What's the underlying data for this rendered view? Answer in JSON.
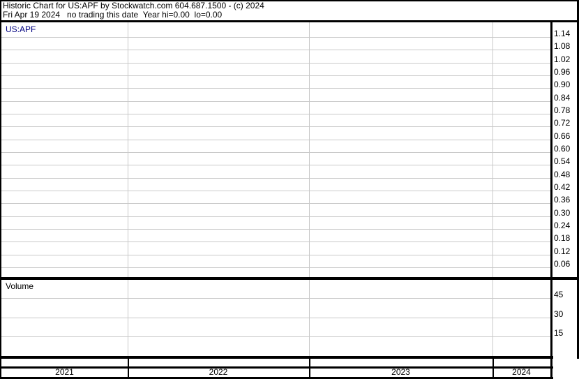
{
  "header": {
    "line1": "Historic Chart for US:APF by Stockwatch.com 604.687.1500 - (c) 2024",
    "line2": "Fri Apr 19 2024   no trading this date  Year hi=0.00  lo=0.00"
  },
  "price_panel": {
    "label": "US:APF",
    "ticks": [
      "1.14",
      "1.08",
      "1.02",
      "0.96",
      "0.90",
      "0.84",
      "0.78",
      "0.72",
      "0.66",
      "0.60",
      "0.54",
      "0.48",
      "0.42",
      "0.36",
      "0.30",
      "0.24",
      "0.18",
      "0.12",
      "0.06"
    ]
  },
  "volume_panel": {
    "label": "Volume",
    "ticks": [
      "45",
      "30",
      "15"
    ]
  },
  "x_axis": {
    "years": [
      "2021",
      "2022",
      "2023",
      "2024"
    ]
  },
  "colors": {
    "symbol_label": "#000080",
    "grid_line": "#c9c9c9",
    "border": "#000000",
    "background": "#ffffff",
    "text": "#000000"
  },
  "chart_data": {
    "type": "line",
    "title": "Historic Chart for US:APF by Stockwatch.com 604.687.1500 - (c) 2024",
    "subtitle": "Fri Apr 19 2024   no trading this date  Year hi=0.00  lo=0.00",
    "symbol": "US:APF",
    "x_categories": [
      "2021",
      "2022",
      "2023",
      "2024"
    ],
    "grid": true,
    "legend_position": "none",
    "panels": [
      {
        "name": "price",
        "ylabel": "US:APF",
        "y_ticks": [
          1.14,
          1.08,
          1.02,
          0.96,
          0.9,
          0.84,
          0.78,
          0.72,
          0.66,
          0.6,
          0.54,
          0.48,
          0.42,
          0.36,
          0.3,
          0.24,
          0.18,
          0.12,
          0.06
        ],
        "ylim": [
          0.0,
          1.2
        ],
        "series": []
      },
      {
        "name": "volume",
        "ylabel": "Volume",
        "y_ticks": [
          45,
          30,
          15
        ],
        "ylim": [
          0,
          55
        ],
        "series": []
      }
    ],
    "annotations": [
      "no trading this date",
      "Year hi=0.00",
      "lo=0.00"
    ]
  }
}
